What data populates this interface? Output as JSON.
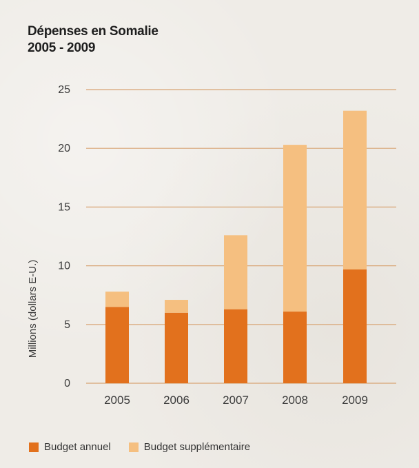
{
  "colors": {
    "annual": "#e2711d",
    "supplementary": "#f5bf80",
    "grid": "#d8a474",
    "text": "#333333"
  },
  "chart_data": {
    "type": "bar",
    "stacked": true,
    "title_line1": "Dépenses en Somalie",
    "title_line2": "2005 - 2009",
    "ylabel": "Millions (dollars E-U.)",
    "categories": [
      "2005",
      "2006",
      "2007",
      "2008",
      "2009"
    ],
    "series": [
      {
        "name": "Budget annuel",
        "values": [
          6.5,
          6.0,
          6.3,
          6.1,
          9.7
        ]
      },
      {
        "name": "Budget supplémentaire",
        "values": [
          1.3,
          1.1,
          6.3,
          14.2,
          13.5
        ]
      }
    ],
    "ylim": [
      0,
      25
    ],
    "yticks": [
      0,
      5,
      10,
      15,
      20,
      25
    ],
    "grid": true,
    "legend_position": "bottom"
  }
}
